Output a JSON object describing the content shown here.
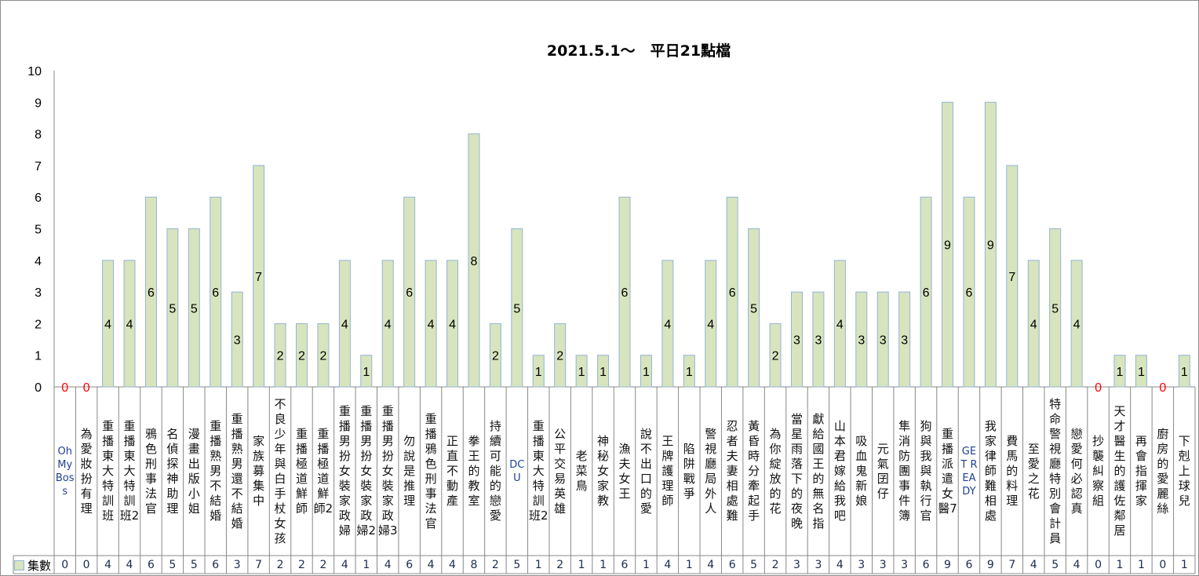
{
  "chart_data": {
    "type": "bar",
    "title": "2021.5.1～　平日21點檔",
    "ylim": [
      0,
      10
    ],
    "yticks": [
      0,
      1,
      2,
      3,
      4,
      5,
      6,
      7,
      8,
      9,
      10
    ],
    "grid": false,
    "legend": "bottom-left (data table)",
    "colors": {
      "bar_fill": "#d7e4bd",
      "bar_stroke": "#95b3d7",
      "zero_label": "#ff0000"
    },
    "series": [
      {
        "name": "集數",
        "values": [
          0,
          0,
          4,
          4,
          6,
          5,
          5,
          6,
          3,
          7,
          2,
          2,
          2,
          4,
          1,
          4,
          6,
          4,
          4,
          8,
          2,
          5,
          1,
          2,
          1,
          1,
          6,
          1,
          4,
          1,
          4,
          6,
          5,
          2,
          3,
          3,
          4,
          3,
          3,
          3,
          6,
          9,
          6,
          9,
          7,
          4,
          5,
          4,
          0,
          1,
          1,
          0,
          1
        ]
      }
    ],
    "categories": [
      "Oh My Boss",
      "為愛妝扮有理",
      "重播東大特訓班",
      "重播東大特訓班2",
      "鴉色刑事法官",
      "名偵探神助理",
      "漫畫出版小姐",
      "重播熟男不結婚",
      "重播熟男還不結婚",
      "家族募集中",
      "不良少年與白手杖女孩",
      "重播極道鮮師",
      "重播極道鮮師2",
      "重播男扮女裝家政婦",
      "重播男扮女裝家政婦2",
      "重播男扮女裝家政婦3",
      "勿說是推理",
      "重播鴉色刑事法官",
      "正直不動產",
      "拳王的教室",
      "持續可能的戀愛",
      "DCU",
      "重播東大特訓班2",
      "公平交易英雄",
      "老菜鳥",
      "神秘女家教",
      "漁夫女王",
      "說不出口的愛",
      "王牌護理師",
      "陷阱戰爭",
      "警視廳局外人",
      "忍者夫妻相處難",
      "黃昏時分牽起手",
      "為你綻放的花",
      "當星雨落下的夜晚",
      "獻給國王的無名指",
      "山本君嫁給我吧",
      "吸血鬼新娘",
      "元氣囝仔",
      "隼消防團事件簿",
      "狗與我與執行官",
      "重播派遣女醫7",
      "GET READY",
      "我家律師難相處",
      "費馬的料理",
      "至愛之花",
      "特命警視廳特別會計員",
      "戀愛何必認真",
      "抄襲糾察組",
      "天才醫生的護佐鄰居",
      "再會指揮家",
      "廚房的愛麗絲",
      "下剋上球兒"
    ]
  }
}
